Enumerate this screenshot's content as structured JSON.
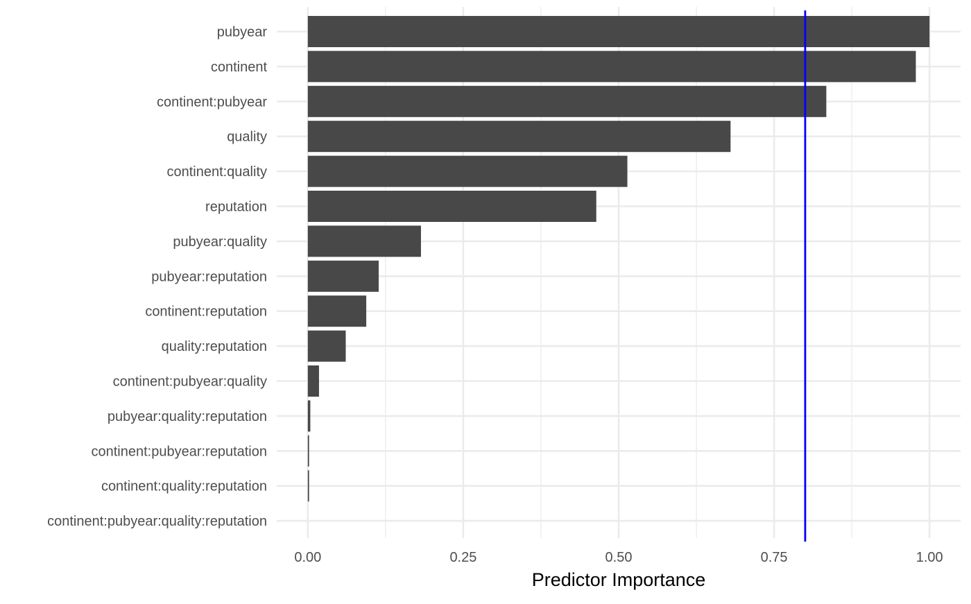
{
  "chart_data": {
    "type": "bar",
    "orientation": "horizontal",
    "categories": [
      "pubyear",
      "continent",
      "continent:pubyear",
      "quality",
      "continent:quality",
      "reputation",
      "pubyear:quality",
      "pubyear:reputation",
      "continent:reputation",
      "quality:reputation",
      "continent:pubyear:quality",
      "pubyear:quality:reputation",
      "continent:pubyear:reputation",
      "continent:quality:reputation",
      "continent:pubyear:quality:reputation"
    ],
    "values": [
      1.0,
      0.978,
      0.834,
      0.68,
      0.514,
      0.464,
      0.182,
      0.114,
      0.094,
      0.061,
      0.018,
      0.004,
      0.002,
      0.002,
      0.0
    ],
    "title": "",
    "xlabel": "Predictor Importance",
    "ylabel": "",
    "xlim": [
      -0.05,
      1.05
    ],
    "x_ticks": [
      0.0,
      0.25,
      0.5,
      0.75,
      1.0
    ],
    "x_tick_labels": [
      "0.00",
      "0.25",
      "0.50",
      "0.75",
      "1.00"
    ],
    "reference_line": {
      "x": 0.8,
      "color": "#0000ff"
    },
    "bar_color": "#484848",
    "grid": true,
    "legend": "none"
  }
}
